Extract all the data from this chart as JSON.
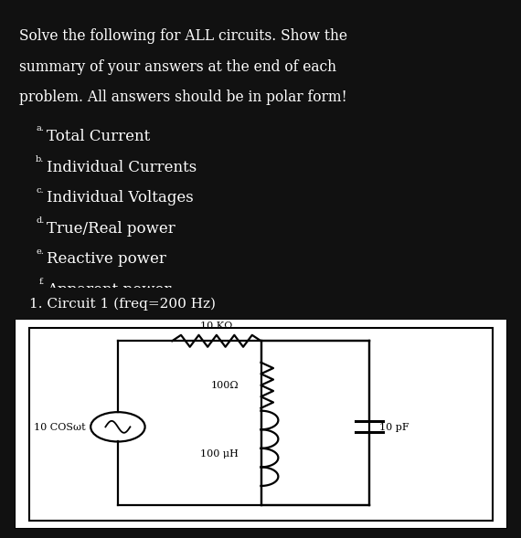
{
  "bg_top": "#111111",
  "bg_bottom": "#ffffff",
  "text_color_top": "#ffffff",
  "text_color_bottom": "#000000",
  "title_line1": "Solve the following for ALL circuits. Show the",
  "title_line2": "summary of your answers at the end of each",
  "title_line3": "problem. All answers should be in polar form!",
  "items": [
    [
      "a",
      "Total Current"
    ],
    [
      "b",
      "Individual Currents"
    ],
    [
      "c",
      "Individual Voltages"
    ],
    [
      "d",
      "True/Real power"
    ],
    [
      "e",
      "Reactive power"
    ],
    [
      "f",
      "Apparent power"
    ]
  ],
  "circuit_header": "1. Circuit 1 (freq=200 Hz)",
  "circuit_bg": "#ffffff",
  "circuit_header_bg": "#111111",
  "circuit_border": "#000000",
  "source_label": "10 COSωt",
  "resistor_series_label": "10 KΩ",
  "resistor_parallel_label": "100Ω",
  "inductor_label": "100 μH",
  "capacitor_label": "10 pF"
}
